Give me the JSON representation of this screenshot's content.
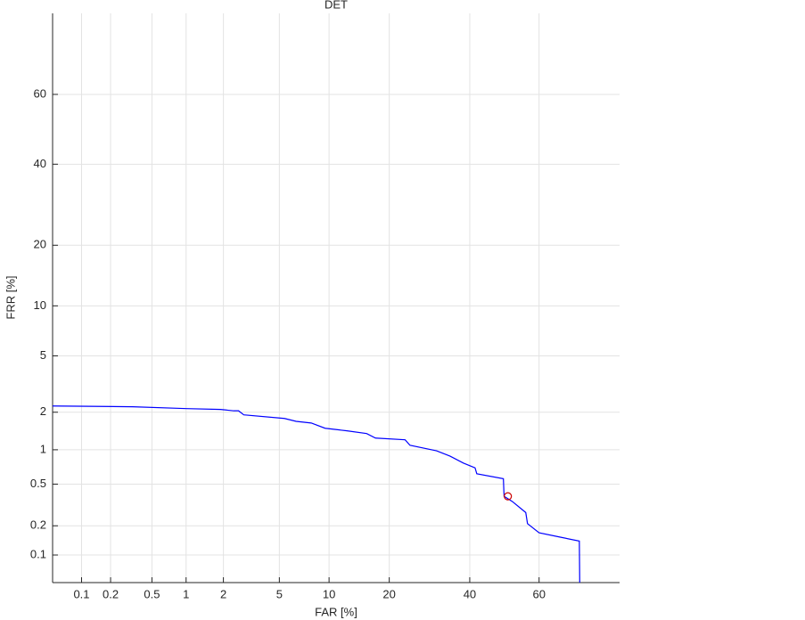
{
  "chart_data": {
    "type": "line",
    "title": "DET",
    "xlabel": "FAR [%]",
    "ylabel": "FRR [%]",
    "scale": "probit",
    "grid": true,
    "xlim": [
      0.048,
      80
    ],
    "ylim": [
      0.05,
      80
    ],
    "xticks": [
      0.1,
      0.2,
      0.5,
      1,
      2,
      5,
      10,
      20,
      40,
      60
    ],
    "yticks": [
      0.1,
      0.2,
      0.5,
      1,
      2,
      5,
      10,
      20,
      40,
      60
    ],
    "series": [
      {
        "color": "#0000ff",
        "x": [
          0.048,
          0.33,
          1.01,
          1.9,
          2.4,
          2.6,
          2.84,
          5.4,
          6.4,
          7.9,
          9.5,
          12.5,
          15.7,
          17.3,
          23.4,
          24.5,
          31,
          34.5,
          38.2,
          41.5,
          42,
          49.7,
          49.9,
          52.3,
          56.2,
          56.7,
          60,
          66,
          70.8,
          70.9
        ],
        "values": [
          2.23,
          2.2,
          2.13,
          2.1,
          2.05,
          2.05,
          1.91,
          1.79,
          1.7,
          1.65,
          1.5,
          1.43,
          1.36,
          1.25,
          1.21,
          1.09,
          0.98,
          0.885,
          0.77,
          0.7,
          0.62,
          0.56,
          0.386,
          0.345,
          0.27,
          0.21,
          0.17,
          0.153,
          0.14,
          0.05
        ]
      }
    ],
    "marker": {
      "color": "#cc0000",
      "x": 51,
      "y": 0.386
    }
  }
}
